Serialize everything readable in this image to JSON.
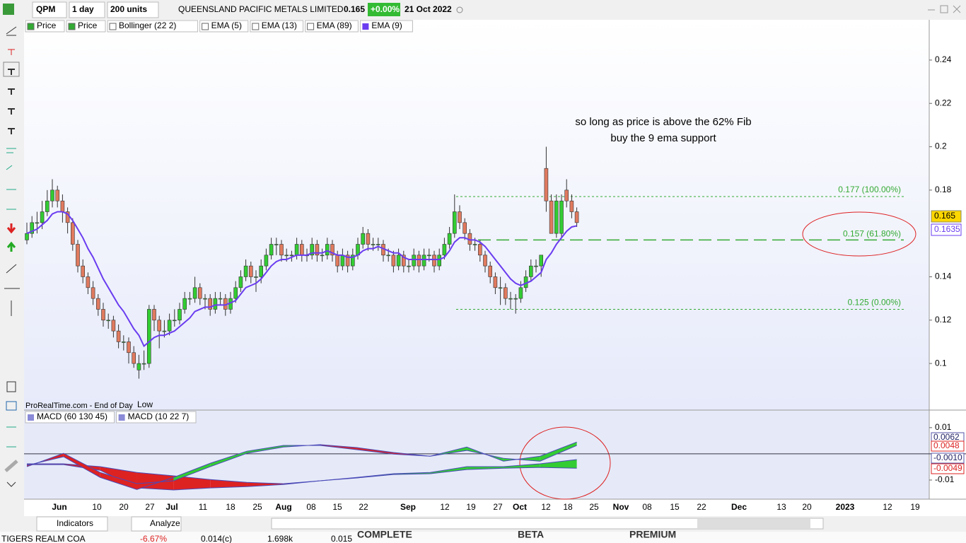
{
  "toolbar": {
    "ticker": "QPM",
    "interval": "1 day",
    "units": "200 units",
    "name": "QUEENSLAND PACIFIC METALS LIMITED",
    "last": "0.165",
    "change": "+0.00%",
    "date": "21 Oct 2022"
  },
  "indicators": [
    "Price",
    "Price",
    "Bollinger (22 2)",
    "EMA (5)",
    "EMA (13)",
    "EMA (89)"
  ],
  "source": "ProRealTime.com - End of Day",
  "source_note": "Low",
  "bottom_bar": {
    "indicators": "Indicators",
    "analyze": "Analyze"
  },
  "ticker_strip": [
    "TIGERS REALM COA",
    "-6.67%",
    "0.014(c)",
    "1.698k",
    "0.015"
  ],
  "banners": [
    "COMPLETE",
    "BETA",
    "PREMIUM"
  ],
  "chart_data": [
    {
      "type": "candlestick",
      "annotations": [
        "so long as price is above the 62% Fib",
        "buy the 9 ema support"
      ],
      "ylim": [
        0.0785,
        0.2527
      ],
      "yticks": [
        0.1,
        0.12,
        0.14,
        0.18,
        0.2,
        0.22,
        0.24
      ],
      "x_labels": [
        "Jun",
        "10",
        "20",
        "27",
        "Jul",
        "11",
        "18",
        "25",
        "Aug",
        "08",
        "15",
        "22",
        "Sep",
        "12",
        "19",
        "27",
        "Oct",
        "12",
        "18",
        "25",
        "Nov",
        "08",
        "15",
        "22",
        "Dec",
        "13",
        "20",
        "2023",
        "12",
        "19"
      ],
      "ohlc": [
        [
          0.157,
          0.165,
          0.155,
          0.16
        ],
        [
          0.16,
          0.168,
          0.158,
          0.165
        ],
        [
          0.165,
          0.17,
          0.16,
          0.165
        ],
        [
          0.165,
          0.175,
          0.162,
          0.17
        ],
        [
          0.17,
          0.18,
          0.168,
          0.175
        ],
        [
          0.175,
          0.185,
          0.172,
          0.18
        ],
        [
          0.18,
          0.182,
          0.172,
          0.175
        ],
        [
          0.175,
          0.178,
          0.165,
          0.17
        ],
        [
          0.17,
          0.172,
          0.16,
          0.165
        ],
        [
          0.165,
          0.167,
          0.152,
          0.155
        ],
        [
          0.155,
          0.157,
          0.142,
          0.145
        ],
        [
          0.145,
          0.148,
          0.137,
          0.14
        ],
        [
          0.14,
          0.142,
          0.132,
          0.135
        ],
        [
          0.135,
          0.138,
          0.127,
          0.13
        ],
        [
          0.13,
          0.132,
          0.122,
          0.125
        ],
        [
          0.125,
          0.128,
          0.117,
          0.12
        ],
        [
          0.12,
          0.123,
          0.116,
          0.12
        ],
        [
          0.12,
          0.122,
          0.112,
          0.115
        ],
        [
          0.115,
          0.118,
          0.107,
          0.11
        ],
        [
          0.11,
          0.113,
          0.106,
          0.11
        ],
        [
          0.11,
          0.112,
          0.1,
          0.105
        ],
        [
          0.105,
          0.108,
          0.098,
          0.1
        ],
        [
          0.097,
          0.104,
          0.093,
          0.1
        ],
        [
          0.1,
          0.106,
          0.097,
          0.1
        ],
        [
          0.1,
          0.127,
          0.098,
          0.125
        ],
        [
          0.125,
          0.127,
          0.115,
          0.12
        ],
        [
          0.12,
          0.122,
          0.107,
          0.115
        ],
        [
          0.115,
          0.12,
          0.112,
          0.115
        ],
        [
          0.115,
          0.123,
          0.113,
          0.12
        ],
        [
          0.12,
          0.125,
          0.117,
          0.12
        ],
        [
          0.12,
          0.128,
          0.118,
          0.125
        ],
        [
          0.125,
          0.133,
          0.123,
          0.13
        ],
        [
          0.13,
          0.133,
          0.127,
          0.13
        ],
        [
          0.13,
          0.14,
          0.128,
          0.135
        ],
        [
          0.135,
          0.137,
          0.127,
          0.13
        ],
        [
          0.13,
          0.132,
          0.125,
          0.13
        ],
        [
          0.13,
          0.132,
          0.122,
          0.125
        ],
        [
          0.125,
          0.133,
          0.123,
          0.13
        ],
        [
          0.13,
          0.133,
          0.127,
          0.13
        ],
        [
          0.13,
          0.132,
          0.122,
          0.125
        ],
        [
          0.125,
          0.133,
          0.123,
          0.13
        ],
        [
          0.13,
          0.138,
          0.128,
          0.135
        ],
        [
          0.135,
          0.143,
          0.133,
          0.14
        ],
        [
          0.14,
          0.148,
          0.138,
          0.145
        ],
        [
          0.145,
          0.147,
          0.137,
          0.14
        ],
        [
          0.14,
          0.143,
          0.133,
          0.14
        ],
        [
          0.14,
          0.148,
          0.137,
          0.145
        ],
        [
          0.145,
          0.153,
          0.143,
          0.15
        ],
        [
          0.15,
          0.158,
          0.148,
          0.155
        ],
        [
          0.155,
          0.158,
          0.15,
          0.155
        ],
        [
          0.155,
          0.157,
          0.147,
          0.15
        ],
        [
          0.15,
          0.153,
          0.147,
          0.15
        ],
        [
          0.15,
          0.152,
          0.147,
          0.15
        ],
        [
          0.15,
          0.158,
          0.148,
          0.155
        ],
        [
          0.155,
          0.157,
          0.147,
          0.15
        ],
        [
          0.15,
          0.153,
          0.147,
          0.15
        ],
        [
          0.15,
          0.158,
          0.148,
          0.155
        ],
        [
          0.155,
          0.157,
          0.147,
          0.15
        ],
        [
          0.15,
          0.153,
          0.147,
          0.15
        ],
        [
          0.15,
          0.158,
          0.148,
          0.155
        ],
        [
          0.155,
          0.157,
          0.147,
          0.15
        ],
        [
          0.15,
          0.152,
          0.142,
          0.145
        ],
        [
          0.145,
          0.153,
          0.143,
          0.15
        ],
        [
          0.15,
          0.152,
          0.142,
          0.145
        ],
        [
          0.145,
          0.153,
          0.143,
          0.15
        ],
        [
          0.15,
          0.158,
          0.148,
          0.155
        ],
        [
          0.155,
          0.163,
          0.153,
          0.16
        ],
        [
          0.16,
          0.162,
          0.152,
          0.155
        ],
        [
          0.155,
          0.158,
          0.152,
          0.155
        ],
        [
          0.155,
          0.158,
          0.152,
          0.155
        ],
        [
          0.155,
          0.157,
          0.147,
          0.15
        ],
        [
          0.15,
          0.153,
          0.147,
          0.15
        ],
        [
          0.15,
          0.152,
          0.142,
          0.145
        ],
        [
          0.145,
          0.153,
          0.143,
          0.15
        ],
        [
          0.15,
          0.152,
          0.142,
          0.145
        ],
        [
          0.145,
          0.148,
          0.142,
          0.145
        ],
        [
          0.145,
          0.153,
          0.143,
          0.15
        ],
        [
          0.15,
          0.152,
          0.142,
          0.145
        ],
        [
          0.145,
          0.153,
          0.143,
          0.15
        ],
        [
          0.15,
          0.153,
          0.147,
          0.15
        ],
        [
          0.15,
          0.152,
          0.142,
          0.145
        ],
        [
          0.145,
          0.153,
          0.143,
          0.15
        ],
        [
          0.15,
          0.158,
          0.148,
          0.155
        ],
        [
          0.155,
          0.163,
          0.153,
          0.16
        ],
        [
          0.16,
          0.178,
          0.158,
          0.17
        ],
        [
          0.17,
          0.173,
          0.162,
          0.165
        ],
        [
          0.165,
          0.167,
          0.157,
          0.16
        ],
        [
          0.16,
          0.162,
          0.152,
          0.155
        ],
        [
          0.155,
          0.158,
          0.152,
          0.155
        ],
        [
          0.155,
          0.157,
          0.147,
          0.15
        ],
        [
          0.15,
          0.152,
          0.142,
          0.145
        ],
        [
          0.145,
          0.147,
          0.137,
          0.14
        ],
        [
          0.14,
          0.142,
          0.132,
          0.135
        ],
        [
          0.135,
          0.14,
          0.127,
          0.135
        ],
        [
          0.135,
          0.137,
          0.127,
          0.13
        ],
        [
          0.13,
          0.133,
          0.125,
          0.13
        ],
        [
          0.13,
          0.132,
          0.123,
          0.13
        ],
        [
          0.13,
          0.138,
          0.128,
          0.135
        ],
        [
          0.135,
          0.143,
          0.133,
          0.14
        ],
        [
          0.14,
          0.148,
          0.138,
          0.145
        ],
        [
          0.145,
          0.148,
          0.142,
          0.145
        ],
        [
          0.145,
          0.15,
          0.14,
          0.15
        ],
        [
          0.19,
          0.2,
          0.17,
          0.175
        ],
        [
          0.175,
          0.178,
          0.16,
          0.16
        ],
        [
          0.16,
          0.178,
          0.158,
          0.175
        ],
        [
          0.16,
          0.178,
          0.158,
          0.175
        ],
        [
          0.18,
          0.185,
          0.172,
          0.175
        ],
        [
          0.175,
          0.178,
          0.167,
          0.17
        ],
        [
          0.17,
          0.172,
          0.163,
          0.165
        ]
      ],
      "up_color": "#33cc33",
      "down_color": "#e07a5f",
      "ema": {
        "name": "EMA (9)",
        "color": "#6a3cf0",
        "values": [
          0.16,
          0.161,
          0.162,
          0.164,
          0.166,
          0.169,
          0.17,
          0.17,
          0.169,
          0.166,
          0.162,
          0.158,
          0.153,
          0.149,
          0.144,
          0.139,
          0.135,
          0.131,
          0.127,
          0.124,
          0.12,
          0.116,
          0.113,
          0.108,
          0.11,
          0.112,
          0.113,
          0.113,
          0.114,
          0.115,
          0.117,
          0.119,
          0.121,
          0.124,
          0.125,
          0.126,
          0.126,
          0.127,
          0.127,
          0.127,
          0.128,
          0.129,
          0.132,
          0.135,
          0.136,
          0.137,
          0.139,
          0.142,
          0.145,
          0.147,
          0.148,
          0.148,
          0.149,
          0.15,
          0.15,
          0.15,
          0.151,
          0.151,
          0.151,
          0.152,
          0.151,
          0.15,
          0.15,
          0.149,
          0.149,
          0.15,
          0.152,
          0.153,
          0.153,
          0.154,
          0.153,
          0.152,
          0.151,
          0.151,
          0.149,
          0.148,
          0.148,
          0.148,
          0.148,
          0.148,
          0.148,
          0.148,
          0.149,
          0.152,
          0.156,
          0.158,
          0.158,
          0.157,
          0.157,
          0.156,
          0.154,
          0.151,
          0.148,
          0.145,
          0.142,
          0.139,
          0.137,
          0.136,
          0.137,
          0.138,
          0.14,
          0.142,
          0.148,
          0.151,
          0.155,
          0.158,
          0.161,
          0.163,
          0.1635
        ]
      },
      "fib_levels": [
        {
          "value": 0.177,
          "label": "0.177 (100.00%)"
        },
        {
          "value": 0.157,
          "label": "0.157 (61.80%)"
        },
        {
          "value": 0.125,
          "label": "0.125 (0.00%)"
        }
      ],
      "fib_color": "#33aa33",
      "value_tags": [
        0.165,
        0.1635
      ]
    },
    {
      "type": "macd",
      "ylim": [
        -0.0173,
        0.0167
      ],
      "yticks": [
        -0.01,
        0.01
      ],
      "zero_line": true,
      "up_color": "#33cc33",
      "down_color": "#dd2222",
      "line_color": "#4a4ab8",
      "series": [
        {
          "name": "MACD (60 130 45)",
          "macd": [
            -0.0041,
            -0.0041,
            -0.0063,
            -0.013,
            -0.0138,
            -0.013,
            -0.0125,
            -0.0117,
            -0.0103,
            -0.009,
            -0.0076,
            -0.0071,
            -0.0049,
            -0.0049,
            -0.0038,
            -0.0022
          ],
          "signal": [
            -0.0038,
            -0.0038,
            -0.0049,
            -0.0071,
            -0.0084,
            -0.0098,
            -0.0109,
            -0.0114,
            -0.0103,
            -0.0092,
            -0.0079,
            -0.0076,
            -0.006,
            -0.0055,
            -0.0052,
            -0.0055
          ]
        },
        {
          "name": "MACD (10 22 7)",
          "macd": [
            -0.0044,
            -0.0011,
            -0.009,
            -0.0136,
            -0.009,
            -0.0036,
            0.001,
            0.0032,
            0.0032,
            0.0016,
            -0.0001,
            -0.0009,
            0.0026,
            -0.0028,
            -0.0009,
            0.0045
          ],
          "signal": [
            -0.0049,
            0.0002,
            -0.0071,
            -0.0114,
            -0.0103,
            -0.0049,
            0.0002,
            0.0026,
            0.0035,
            0.0024,
            0.0005,
            -0.0009,
            0.0013,
            -0.0017,
            -0.0028,
            0.0032
          ]
        }
      ],
      "value_tags": [
        0.0062,
        0.0048,
        {
          "value": -0.001,
          "label": "-0.0010"
        },
        -0.0049
      ]
    }
  ]
}
